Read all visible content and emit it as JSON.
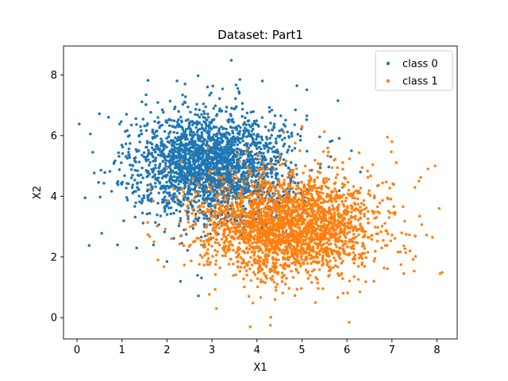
{
  "chart_data": {
    "type": "scatter",
    "title": "Dataset: Part1",
    "xlabel": "X1",
    "ylabel": "X2",
    "xlim": [
      -0.3,
      8.45
    ],
    "ylim": [
      -0.7,
      8.95
    ],
    "xticks": [
      0,
      1,
      2,
      3,
      4,
      5,
      6,
      7,
      8
    ],
    "yticks": [
      0,
      2,
      4,
      6,
      8
    ],
    "grid": false,
    "legend_position": "top-right",
    "series": [
      {
        "name": "class 0",
        "color": "#1f77b4",
        "n_points": 2500,
        "center": [
          3.0,
          5.0
        ],
        "std": [
          0.85,
          0.9
        ],
        "points": [
          [
            0.05,
            6.38
          ],
          [
            0.27,
            2.38
          ],
          [
            0.18,
            3.95
          ],
          [
            0.55,
            2.78
          ],
          [
            0.35,
            5.45
          ],
          [
            0.9,
            2.4
          ],
          [
            1.1,
            6.7
          ],
          [
            1.58,
            7.82
          ],
          [
            3.43,
            8.48
          ],
          [
            4.12,
            7.8
          ],
          [
            5.8,
            7.15
          ],
          [
            2.3,
            1.2
          ],
          [
            2.7,
            0.72
          ],
          [
            2.0,
            1.85
          ],
          [
            1.7,
            2.4
          ],
          [
            6.3,
            4.8
          ],
          [
            6.1,
            5.5
          ],
          [
            2.4,
            7.7
          ],
          [
            2.9,
            7.6
          ],
          [
            3.6,
            7.45
          ]
        ]
      },
      {
        "name": "class 1",
        "color": "#ff7f0e",
        "n_points": 2500,
        "center": [
          4.7,
          3.05
        ],
        "std": [
          1.0,
          0.85
        ],
        "points": [
          [
            3.85,
            -0.3
          ],
          [
            6.05,
            -0.15
          ],
          [
            4.3,
            -0.25
          ],
          [
            7.96,
            5.0
          ],
          [
            8.05,
            3.6
          ],
          [
            7.9,
            2.65
          ],
          [
            7.8,
            4.9
          ],
          [
            6.9,
            5.95
          ],
          [
            1.8,
            1.9
          ],
          [
            7.2,
            1.75
          ],
          [
            3.1,
            0.3
          ],
          [
            5.3,
            0.5
          ],
          [
            7.0,
            5.8
          ],
          [
            6.6,
            1.2
          ],
          [
            7.6,
            4.5
          ],
          [
            2.1,
            2.6
          ],
          [
            7.4,
            2.2
          ],
          [
            5.0,
            6.3
          ],
          [
            4.6,
            6.1
          ],
          [
            6.9,
            3.95
          ]
        ]
      }
    ]
  }
}
